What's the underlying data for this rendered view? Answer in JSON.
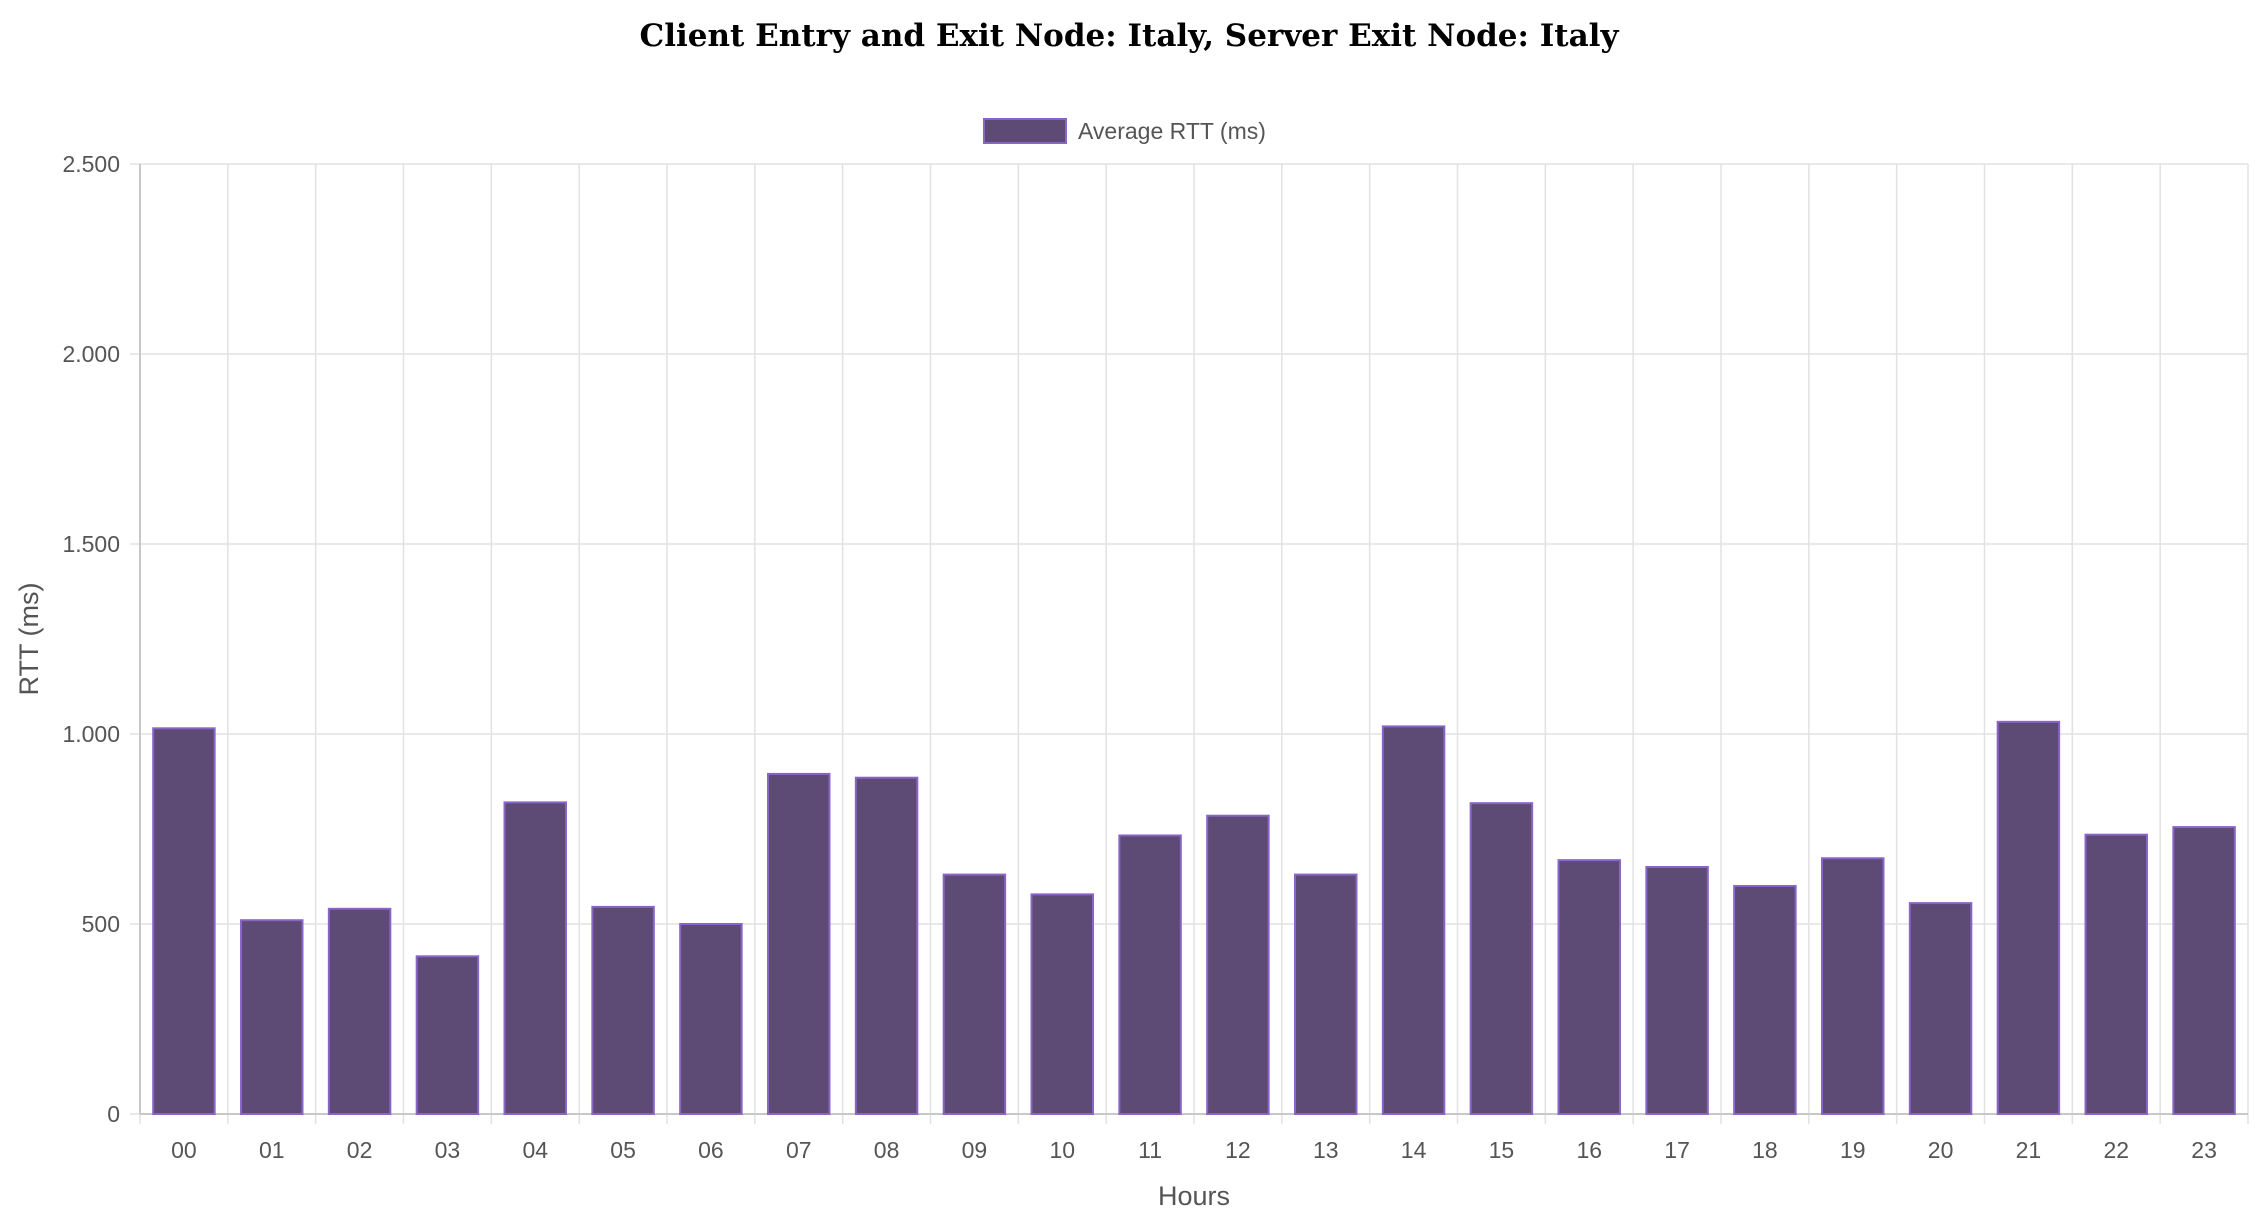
{
  "chart_data": {
    "type": "bar",
    "title": "Client Entry and Exit Node: Italy, Server Exit Node: Italy",
    "xlabel": "Hours",
    "ylabel": "RTT (ms)",
    "ylim": [
      0,
      2500
    ],
    "yticks": [
      0,
      500,
      1000,
      1500,
      2000,
      2500
    ],
    "ytick_labels": [
      "0",
      "500",
      "1.000",
      "1.500",
      "2.000",
      "2.500"
    ],
    "categories": [
      "00",
      "01",
      "02",
      "03",
      "04",
      "05",
      "06",
      "07",
      "08",
      "09",
      "10",
      "11",
      "12",
      "13",
      "14",
      "15",
      "16",
      "17",
      "18",
      "19",
      "20",
      "21",
      "22",
      "23"
    ],
    "series": [
      {
        "name": "Average RTT (ms)",
        "values": [
          1015,
          510,
          540,
          415,
          820,
          545,
          500,
          895,
          885,
          630,
          578,
          733,
          785,
          630,
          1020,
          818,
          668,
          650,
          600,
          673,
          555,
          1032,
          735,
          755
        ]
      }
    ],
    "grid": true,
    "legend_position": "top-center",
    "colors": {
      "bar_fill": "#5d4a75",
      "bar_border": "#8a65c8",
      "grid": "#e2e2e2",
      "axis": "#c8c8c8"
    }
  }
}
